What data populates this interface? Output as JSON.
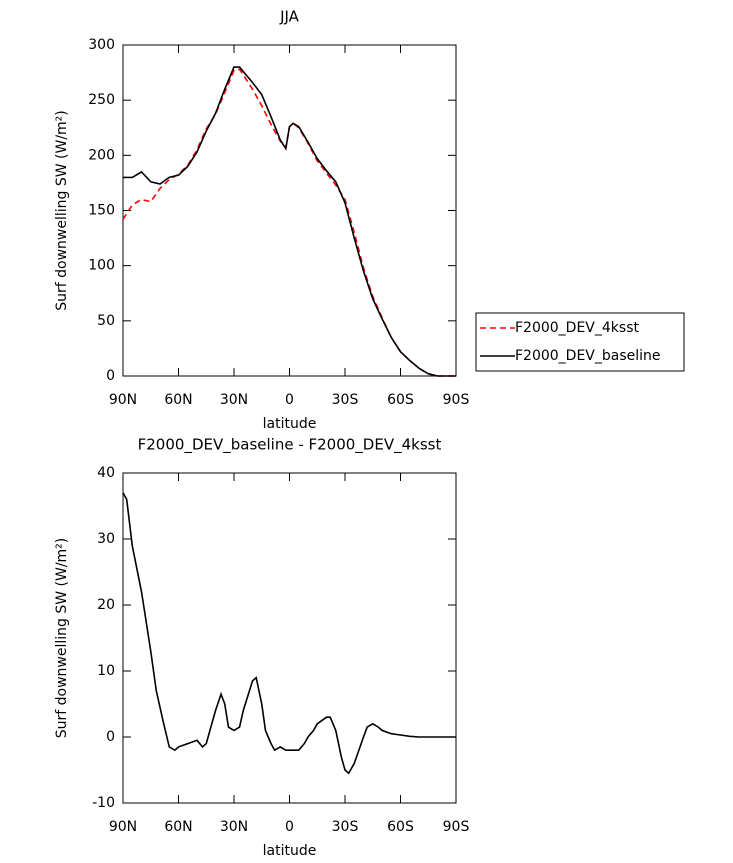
{
  "chart_data": [
    {
      "type": "line",
      "title": "JJA",
      "xlabel": "latitude",
      "ylabel": "Surf downwelling SW (W/m²)",
      "x": [
        90,
        85,
        80,
        75,
        70,
        65,
        60,
        55,
        50,
        45,
        40,
        35,
        30,
        27,
        25,
        20,
        15,
        10,
        5,
        2,
        0,
        -2,
        -5,
        -10,
        -15,
        -20,
        -25,
        -30,
        -35,
        -40,
        -45,
        -50,
        -55,
        -60,
        -65,
        -70,
        -75,
        -80,
        -85,
        -90
      ],
      "series": [
        {
          "name": "F2000_DEV_4ksst",
          "color": "#ff0000",
          "line_style": "dashed",
          "values": [
            142,
            155,
            160,
            158,
            170,
            178,
            183,
            191,
            205,
            224,
            237,
            257,
            277,
            278,
            273,
            260,
            245,
            228,
            213,
            207,
            226,
            229,
            225,
            211,
            195,
            184,
            173,
            160,
            130,
            98,
            72,
            53,
            35,
            22,
            14,
            7,
            2,
            0,
            0,
            0
          ]
        },
        {
          "name": "F2000_DEV_baseline",
          "color": "#000000",
          "line_style": "solid",
          "values": [
            180,
            180,
            185,
            176,
            174,
            180,
            182,
            190,
            203,
            222,
            238,
            260,
            280,
            280,
            276,
            266,
            255,
            235,
            214,
            206,
            226,
            229,
            226,
            212,
            197,
            186,
            176,
            157,
            125,
            95,
            70,
            52,
            35,
            22,
            14,
            7,
            2,
            0,
            0,
            0
          ]
        }
      ],
      "xlim": [
        90,
        -90
      ],
      "xticks": [
        {
          "value": 90,
          "label": "90N"
        },
        {
          "value": 60,
          "label": "60N"
        },
        {
          "value": 30,
          "label": "30N"
        },
        0,
        {
          "value": -30,
          "label": "30S"
        },
        {
          "value": -60,
          "label": "60S"
        },
        {
          "value": -90,
          "label": "90S"
        }
      ],
      "ylim": [
        0,
        300
      ],
      "yticks": [
        0,
        50,
        100,
        150,
        200,
        250,
        300
      ],
      "legend": "right"
    },
    {
      "type": "line",
      "title": "F2000_DEV_baseline - F2000_DEV_4ksst",
      "xlabel": "latitude",
      "ylabel": "Surf downwelling SW (W/m²)",
      "x": [
        90,
        88,
        85,
        80,
        75,
        72,
        68,
        65,
        62,
        60,
        55,
        50,
        47,
        45,
        40,
        37,
        35,
        33,
        30,
        27,
        25,
        20,
        18,
        15,
        13,
        10,
        8,
        5,
        2,
        0,
        -2,
        -5,
        -8,
        -10,
        -13,
        -15,
        -20,
        -22,
        -25,
        -28,
        -30,
        -32,
        -35,
        -40,
        -42,
        -45,
        -48,
        -50,
        -55,
        -60,
        -65,
        -70,
        -75,
        -80,
        -85,
        -90
      ],
      "series": [
        {
          "name": null,
          "color": "#000000",
          "line_style": "solid",
          "values": [
            37,
            36,
            29,
            22,
            13,
            7,
            2,
            -1.5,
            -2,
            -1.5,
            -1,
            -0.5,
            -1.5,
            -1,
            4,
            6.5,
            5,
            1.5,
            1,
            1.5,
            4,
            8.5,
            9,
            5,
            1,
            -1,
            -2,
            -1.5,
            -2,
            -2,
            -2,
            -2,
            -1,
            0,
            1,
            2,
            3,
            3,
            1,
            -3,
            -5,
            -5.5,
            -4,
            0,
            1.5,
            2,
            1.5,
            1,
            0.5,
            0.3,
            0.1,
            0,
            0,
            0,
            0,
            0
          ]
        }
      ],
      "xlim": [
        90,
        -90
      ],
      "xticks": [
        {
          "value": 90,
          "label": "90N"
        },
        {
          "value": 60,
          "label": "60N"
        },
        {
          "value": 30,
          "label": "30N"
        },
        0,
        {
          "value": -30,
          "label": "30S"
        },
        {
          "value": -60,
          "label": "60S"
        },
        {
          "value": -90,
          "label": "90S"
        }
      ],
      "ylim": [
        -10,
        40
      ],
      "yticks": [
        -10,
        0,
        10,
        20,
        30,
        40
      ]
    }
  ]
}
